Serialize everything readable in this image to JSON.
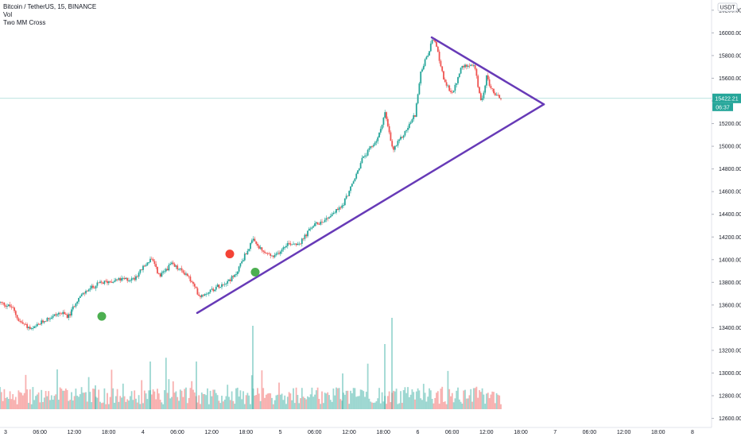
{
  "legend": {
    "symbol_line": "Bitcoin / TetherUS, 15, BINANCE",
    "vol_label": "Vol",
    "indicator_label": "Two MM Cross"
  },
  "colors": {
    "up": "#26a69a",
    "down": "#ef5350",
    "trendline": "#673ab7",
    "marker_green": "#4caf50",
    "marker_red": "#f44336",
    "price_tag_bg": "#26a69a"
  },
  "chart_data": {
    "type": "candlestick",
    "title": "Bitcoin / TetherUS, 15, BINANCE",
    "currency_label": "USDT",
    "y_ticks": [
      "16200.00",
      "16000.00",
      "15800.00",
      "15600.00",
      "15400.00",
      "15200.00",
      "15000.00",
      "14800.00",
      "14600.00",
      "14400.00",
      "14200.00",
      "14000.00",
      "13800.00",
      "13600.00",
      "13400.00",
      "13200.00",
      "13000.00",
      "12800.00",
      "12600.00"
    ],
    "x_ticks": [
      "3",
      "06:00",
      "12:00",
      "18:00",
      "4",
      "06:00",
      "12:00",
      "18:00",
      "5",
      "06:00",
      "12:00",
      "18:00",
      "6",
      "06:00",
      "12:00",
      "18:00",
      "7",
      "06:00",
      "12:00",
      "18:00",
      "8"
    ],
    "ylim": [
      12520,
      16290
    ],
    "last_price": "15422.21",
    "countdown": "06:37",
    "price_path": [
      [
        0,
        13620
      ],
      [
        15,
        13580
      ],
      [
        24,
        13460
      ],
      [
        40,
        13380
      ],
      [
        57,
        13470
      ],
      [
        75,
        13530
      ],
      [
        87,
        13500
      ],
      [
        96,
        13640
      ],
      [
        110,
        13730
      ],
      [
        125,
        13790
      ],
      [
        144,
        13820
      ],
      [
        168,
        13830
      ],
      [
        180,
        13930
      ],
      [
        190,
        14010
      ],
      [
        201,
        13850
      ],
      [
        215,
        13960
      ],
      [
        235,
        13870
      ],
      [
        251,
        13680
      ],
      [
        265,
        13730
      ],
      [
        280,
        13790
      ],
      [
        295,
        13850
      ],
      [
        305,
        14000
      ],
      [
        318,
        14170
      ],
      [
        330,
        14070
      ],
      [
        345,
        14020
      ],
      [
        360,
        14140
      ],
      [
        378,
        14150
      ],
      [
        392,
        14290
      ],
      [
        410,
        14360
      ],
      [
        430,
        14470
      ],
      [
        445,
        14690
      ],
      [
        455,
        14880
      ],
      [
        465,
        14970
      ],
      [
        476,
        15080
      ],
      [
        484,
        15300
      ],
      [
        494,
        14960
      ],
      [
        510,
        15130
      ],
      [
        522,
        15280
      ],
      [
        530,
        15680
      ],
      [
        538,
        15800
      ],
      [
        545,
        15960
      ],
      [
        552,
        15790
      ],
      [
        560,
        15540
      ],
      [
        570,
        15470
      ],
      [
        580,
        15690
      ],
      [
        590,
        15730
      ],
      [
        597,
        15700
      ],
      [
        605,
        15380
      ],
      [
        612,
        15610
      ],
      [
        620,
        15480
      ],
      [
        630,
        15422
      ]
    ],
    "markers": [
      {
        "type": "buy",
        "x_label": "~14:00 day 3",
        "price": 13500
      },
      {
        "type": "sell",
        "x_label": "~13:00 day 4",
        "price": 14050
      },
      {
        "type": "buy",
        "x_label": "~19:00 day 4",
        "price": 13890
      }
    ],
    "trendlines": [
      {
        "from": {
          "x": 248,
          "price": 13530
        },
        "to": {
          "x": 684,
          "price": 15370
        }
      },
      {
        "from": {
          "x": 543,
          "price": 15960
        },
        "to": {
          "x": 684,
          "price": 15370
        }
      }
    ],
    "volume": {
      "max_relative": 1.0,
      "note": "relative heights"
    }
  }
}
